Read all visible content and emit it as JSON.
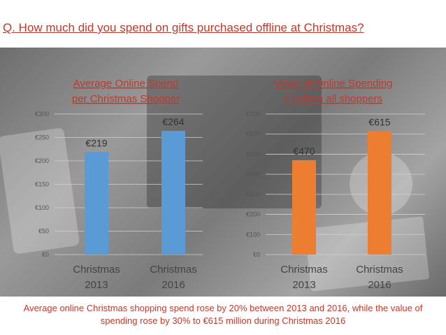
{
  "question": "Q. How much did you spend on gifts purchased offline at Christmas?",
  "caption": "Average online Christmas shopping spend rose by 20% between 2013 and 2016, while the value of spending rose by 30% to €615 million during Christmas 2016",
  "chart_data": [
    {
      "type": "bar",
      "title": "Average Online Spend per Christmas Shopper",
      "title_lines": [
        "Average Online Spend",
        "per Christmas Shopper"
      ],
      "categories": [
        "Christmas 2013",
        "Christmas 2016"
      ],
      "category_lines": [
        [
          "Christmas",
          "2013"
        ],
        [
          "Christmas",
          "2016"
        ]
      ],
      "values": [
        219,
        264
      ],
      "data_labels": [
        "€219",
        "€264"
      ],
      "ylim": [
        0,
        300
      ],
      "yticks": [
        0,
        50,
        100,
        150,
        200,
        250,
        300
      ],
      "ytick_labels": [
        "€0",
        "€50",
        "€100",
        "€150",
        "€200",
        "€250",
        "€300"
      ],
      "color": "#5b9bd5",
      "grid": true,
      "legend": "none"
    },
    {
      "type": "bar",
      "title": "Value of Online Spending € million all shoppers",
      "title_lines": [
        "Value of Online Spending",
        "€ million all shoppers"
      ],
      "categories": [
        "Christmas 2013",
        "Christmas 2016"
      ],
      "category_lines": [
        [
          "Christmas",
          "2013"
        ],
        [
          "Christmas",
          "2016"
        ]
      ],
      "values": [
        470,
        615
      ],
      "data_labels": [
        "€470",
        "€615"
      ],
      "ylim": [
        0,
        700
      ],
      "yticks": [
        0,
        100,
        200,
        300,
        400,
        500,
        600,
        700
      ],
      "ytick_labels": [
        "€0",
        "€100",
        "€200",
        "€300",
        "€400",
        "€500",
        "€600",
        "€700"
      ],
      "color": "#ed7d31",
      "grid": true,
      "legend": "none"
    }
  ]
}
